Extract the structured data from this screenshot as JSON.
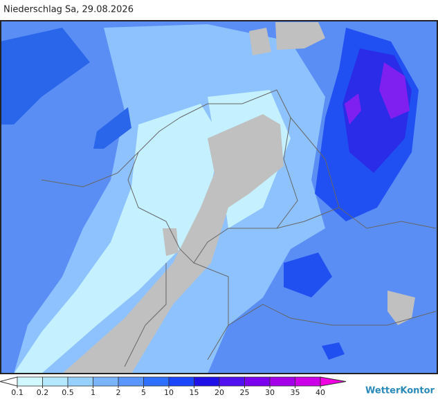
{
  "title": "Niederschlag Sa, 29.08.2026",
  "legend": {
    "ticks": [
      0.1,
      0.2,
      0.5,
      1,
      2,
      5,
      10,
      15,
      20,
      25,
      30,
      35,
      40
    ],
    "colors": [
      "#ffffff",
      "#d2f8ff",
      "#b4e8ff",
      "#96d0ff",
      "#7ab4ff",
      "#5a96ff",
      "#2e70ff",
      "#1a46ff",
      "#2010e8",
      "#5010f0",
      "#7a00ee",
      "#a400e8",
      "#cc00e6",
      "#f000e0"
    ]
  },
  "brand": "WetterKontor"
}
